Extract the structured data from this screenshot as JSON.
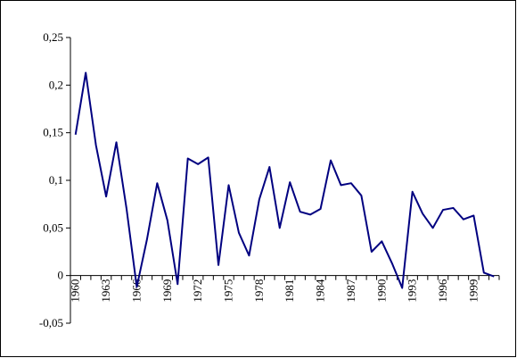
{
  "chart_data": {
    "type": "line",
    "categories": [
      "1960",
      null,
      null,
      "1963",
      null,
      null,
      "1966",
      null,
      null,
      "1969",
      null,
      null,
      "1972",
      null,
      null,
      "1975",
      null,
      null,
      "1978",
      null,
      null,
      "1981",
      null,
      null,
      "1984",
      null,
      null,
      "1987",
      null,
      null,
      "1990",
      null,
      null,
      "1993",
      null,
      null,
      "1996",
      null,
      null,
      "1999",
      null,
      null
    ],
    "values": [
      0.148,
      0.213,
      0.137,
      0.083,
      0.14,
      0.07,
      -0.012,
      0.038,
      0.097,
      0.058,
      -0.009,
      0.123,
      0.117,
      0.124,
      0.011,
      0.095,
      0.045,
      0.021,
      0.08,
      0.114,
      0.05,
      0.098,
      0.067,
      0.064,
      0.07,
      0.121,
      0.095,
      0.097,
      0.084,
      0.025,
      0.036,
      0.013,
      -0.013,
      0.088,
      0.065,
      0.05,
      0.069,
      0.071,
      0.059,
      0.063,
      0.003,
      -0.001
    ],
    "color": "#000080",
    "ylim": [
      -0.05,
      0.25
    ],
    "yticks": [
      {
        "value": -0.05,
        "label": "-0,05"
      },
      0,
      {
        "value": 0.05,
        "label": "0,05"
      },
      {
        "value": 0.1,
        "label": "0,1"
      },
      {
        "value": 0.15,
        "label": "0,15"
      },
      {
        "value": 0.2,
        "label": "0,2"
      },
      {
        "value": 0.25,
        "label": "0,25"
      }
    ],
    "grid": false
  }
}
